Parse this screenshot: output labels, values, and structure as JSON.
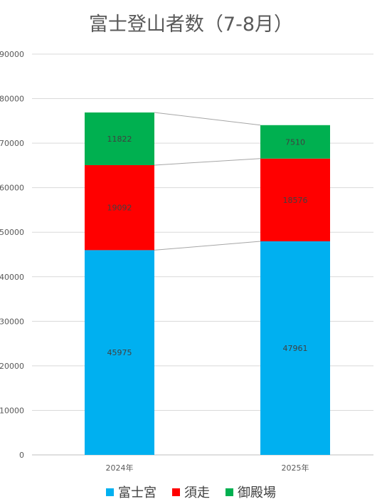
{
  "chart_data": {
    "type": "bar",
    "stacked": true,
    "title": "富士登山者数（7-8月）",
    "categories": [
      "2024年",
      "2025年"
    ],
    "series": [
      {
        "name": "富士宮",
        "values": [
          45975,
          47961
        ],
        "color": "#00b0f0"
      },
      {
        "name": "須走",
        "values": [
          19092,
          18576
        ],
        "color": "#ff0000"
      },
      {
        "name": "御殿場",
        "values": [
          11822,
          7510
        ],
        "color": "#00b050"
      }
    ],
    "ylim": [
      0,
      90000
    ],
    "yticks": [
      "0",
      "10000",
      "20000",
      "30000",
      "40000",
      "50000",
      "60000",
      "70000",
      "80000",
      "90000"
    ],
    "grid": true,
    "series_lines": true,
    "legend_position": "bottom"
  }
}
